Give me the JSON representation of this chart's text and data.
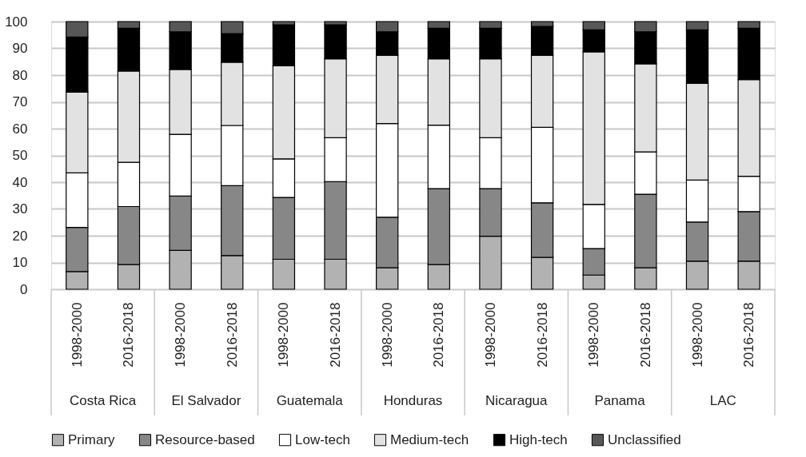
{
  "chart_data": {
    "type": "bar",
    "stacked": true,
    "categories": [
      "1998-2000",
      "2016-2018",
      "1998-2000",
      "2016-2018",
      "1998-2000",
      "2016-2018",
      "1998-2000",
      "2016-2018",
      "1998-2000",
      "2016-2018",
      "1998-2000",
      "2016-2018",
      "1998-2000",
      "2016-2018"
    ],
    "series": [
      {
        "name": "Primary",
        "color": "#b2b2b2",
        "values": [
          6.6,
          9.2,
          14.5,
          12.6,
          11.2,
          11.2,
          8.0,
          9.2,
          19.8,
          11.9,
          5.3,
          8.0,
          10.5,
          10.5
        ]
      },
      {
        "name": "Resource-based",
        "color": "#878787",
        "values": [
          16.5,
          21.7,
          20.3,
          26.1,
          23.1,
          29.0,
          18.9,
          28.4,
          17.8,
          20.4,
          9.9,
          27.5,
          14.6,
          18.5
        ]
      },
      {
        "name": "Low-tech",
        "color": "#ffffff",
        "values": [
          20.4,
          16.5,
          23.1,
          22.5,
          14.4,
          16.4,
          35.0,
          23.7,
          19.0,
          28.2,
          16.5,
          15.8,
          15.7,
          13.2
        ]
      },
      {
        "name": "Medium-tech",
        "color": "#e2e2e2",
        "values": [
          30.1,
          34.1,
          24.2,
          23.6,
          34.8,
          29.5,
          25.5,
          24.8,
          29.5,
          26.9,
          57.0,
          32.9,
          36.1,
          36.1
        ]
      },
      {
        "name": "High-tech",
        "color": "#000000",
        "values": [
          20.6,
          16.0,
          14.1,
          10.7,
          15.3,
          12.7,
          8.8,
          11.4,
          11.4,
          10.8,
          8.2,
          12.0,
          20.0,
          19.2
        ]
      },
      {
        "name": "Unclassified",
        "color": "#575757",
        "values": [
          5.8,
          2.5,
          3.8,
          4.5,
          1.2,
          1.2,
          3.8,
          2.5,
          2.5,
          1.8,
          3.1,
          3.8,
          3.1,
          2.5
        ]
      }
    ],
    "annotations": [
      "Costa Rica",
      "El Salvador",
      "Guatemala",
      "Honduras",
      "Nicaragua",
      "Panama",
      "LAC"
    ],
    "ylim": [
      0,
      100
    ],
    "yticks": [
      0,
      10,
      20,
      30,
      40,
      50,
      60,
      70,
      80,
      90,
      100
    ],
    "grid": "y",
    "legend": "bottom"
  }
}
